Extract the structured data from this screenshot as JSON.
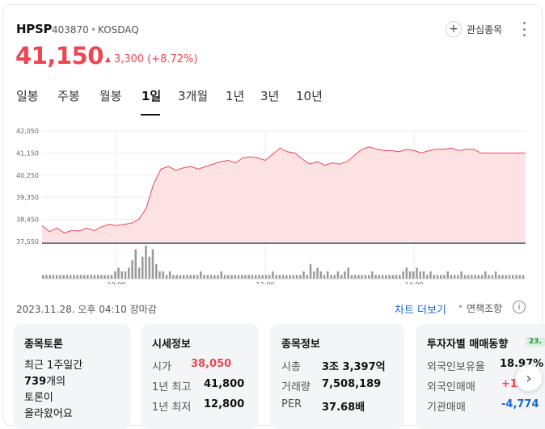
{
  "header": {
    "name": "HPSP",
    "code": "403870",
    "separator": "•",
    "market": "KOSDAQ",
    "watch_label": "관심종목"
  },
  "quote": {
    "price": "41,150",
    "change": "3,300",
    "change_pct": "(+8.72%)"
  },
  "tabs": [
    {
      "label": "일봉"
    },
    {
      "label": "주봉"
    },
    {
      "label": "월봉"
    },
    {
      "label": "1일",
      "active": true
    },
    {
      "label": "3개월"
    },
    {
      "label": "1년"
    },
    {
      "label": "3년"
    },
    {
      "label": "10년"
    }
  ],
  "chart_data": {
    "type": "area",
    "y_ticks": [
      "42,050",
      "41,150",
      "40,250",
      "39,350",
      "38,450",
      "37,550"
    ],
    "ylim": [
      37550,
      42050
    ],
    "x_ticks": [
      "10:00",
      "12:00",
      "14:00"
    ],
    "x_tick_minutes": [
      600,
      720,
      840
    ],
    "xlim": [
      540,
      930
    ],
    "price_points": [
      [
        540,
        38200
      ],
      [
        546,
        37950
      ],
      [
        552,
        38100
      ],
      [
        558,
        37900
      ],
      [
        564,
        38000
      ],
      [
        570,
        37980
      ],
      [
        576,
        38100
      ],
      [
        582,
        38000
      ],
      [
        588,
        38150
      ],
      [
        594,
        38250
      ],
      [
        600,
        38200
      ],
      [
        606,
        38250
      ],
      [
        612,
        38300
      ],
      [
        618,
        38450
      ],
      [
        624,
        38900
      ],
      [
        630,
        39900
      ],
      [
        636,
        40500
      ],
      [
        642,
        40600
      ],
      [
        648,
        40450
      ],
      [
        654,
        40550
      ],
      [
        660,
        40600
      ],
      [
        666,
        40500
      ],
      [
        672,
        40600
      ],
      [
        678,
        40700
      ],
      [
        684,
        40800
      ],
      [
        690,
        40850
      ],
      [
        696,
        40750
      ],
      [
        702,
        40950
      ],
      [
        708,
        41000
      ],
      [
        714,
        40950
      ],
      [
        720,
        40850
      ],
      [
        726,
        41100
      ],
      [
        732,
        41350
      ],
      [
        738,
        41200
      ],
      [
        744,
        41150
      ],
      [
        750,
        40900
      ],
      [
        756,
        40700
      ],
      [
        762,
        40800
      ],
      [
        768,
        40650
      ],
      [
        774,
        40750
      ],
      [
        780,
        40700
      ],
      [
        786,
        40800
      ],
      [
        792,
        41050
      ],
      [
        798,
        41300
      ],
      [
        804,
        41400
      ],
      [
        810,
        41300
      ],
      [
        816,
        41250
      ],
      [
        822,
        41250
      ],
      [
        828,
        41200
      ],
      [
        834,
        41300
      ],
      [
        840,
        41250
      ],
      [
        846,
        41150
      ],
      [
        852,
        41250
      ],
      [
        858,
        41300
      ],
      [
        864,
        41300
      ],
      [
        870,
        41350
      ],
      [
        876,
        41250
      ],
      [
        882,
        41300
      ],
      [
        888,
        41300
      ],
      [
        894,
        41150
      ],
      [
        900,
        41150
      ],
      [
        906,
        41150
      ],
      [
        912,
        41150
      ],
      [
        918,
        41150
      ],
      [
        924,
        41150
      ],
      [
        930,
        41150
      ]
    ],
    "volume": [
      1,
      1,
      1,
      1,
      1,
      1,
      1,
      1,
      1,
      1,
      1,
      1,
      1,
      1,
      1,
      1,
      1,
      1,
      1,
      1,
      1,
      2,
      3,
      2,
      2,
      3,
      5,
      8,
      3,
      6,
      9,
      6,
      8,
      4,
      2,
      2,
      1,
      2,
      1,
      1,
      1,
      1,
      1,
      1,
      1,
      1,
      2,
      1,
      1,
      1,
      1,
      1,
      2,
      1,
      1,
      1,
      1,
      1,
      1,
      1,
      1,
      1,
      1,
      1,
      1,
      1,
      1,
      2,
      1,
      1,
      1,
      1,
      1,
      1,
      1,
      1,
      2,
      1,
      4,
      2,
      3,
      2,
      1,
      2,
      1,
      1,
      2,
      1,
      2,
      3,
      1,
      1,
      1,
      1,
      1,
      1,
      2,
      1,
      1,
      1,
      1,
      1,
      1,
      1,
      1,
      2,
      3,
      2,
      2,
      3,
      2,
      2,
      1,
      2,
      1,
      1,
      1,
      1,
      2,
      1,
      1,
      1,
      2,
      1,
      1,
      1,
      1,
      1,
      1,
      2,
      1,
      1,
      2,
      1,
      1,
      1,
      1,
      1,
      1,
      1,
      1
    ],
    "colors": {
      "line": "#f04452",
      "fill": "#fde2e4",
      "volume": "#999999",
      "baseline": "#222222"
    }
  },
  "footer": {
    "timestamp": "2023.11.28. 오후 04:10 장마감",
    "chart_more": "차트 더보기",
    "separator": "•",
    "disclaimer": "면책조항",
    "info_icon": "i"
  },
  "panels": {
    "forum": {
      "title": "종목토론",
      "line1": "최근 1주일간",
      "line2_bold": "739",
      "line2_rest": "개의",
      "line3": "토론이",
      "line4": "올라왔어요"
    },
    "market_info": {
      "title": "시세정보",
      "rows": [
        {
          "label": "시가",
          "value": "38,050",
          "tone": "red"
        },
        {
          "label": "1년 최고",
          "value": "41,800",
          "tone": "normal"
        },
        {
          "label": "1년 최저",
          "value": "12,800",
          "tone": "normal"
        }
      ]
    },
    "stock_info": {
      "title": "종목정보",
      "rows": [
        {
          "label": "시총",
          "value": "3조 3,397억"
        },
        {
          "label": "거래량",
          "value": "7,508,189"
        },
        {
          "label": "PER",
          "value": "37.68배"
        }
      ]
    },
    "investor": {
      "title": "투자자별 매매동향",
      "badge": "23.",
      "rows": [
        {
          "label": "외국인보유율",
          "value": "18.97%",
          "tone": "normal"
        },
        {
          "label": "외국인매매",
          "value": "+1",
          "tone": "red"
        },
        {
          "label": "기관매매",
          "value": "-4,774",
          "tone": "blue"
        }
      ]
    }
  },
  "icons": {
    "next": "chevron-right-icon",
    "watch": "plus-icon",
    "more": "more-vertical-icon"
  }
}
